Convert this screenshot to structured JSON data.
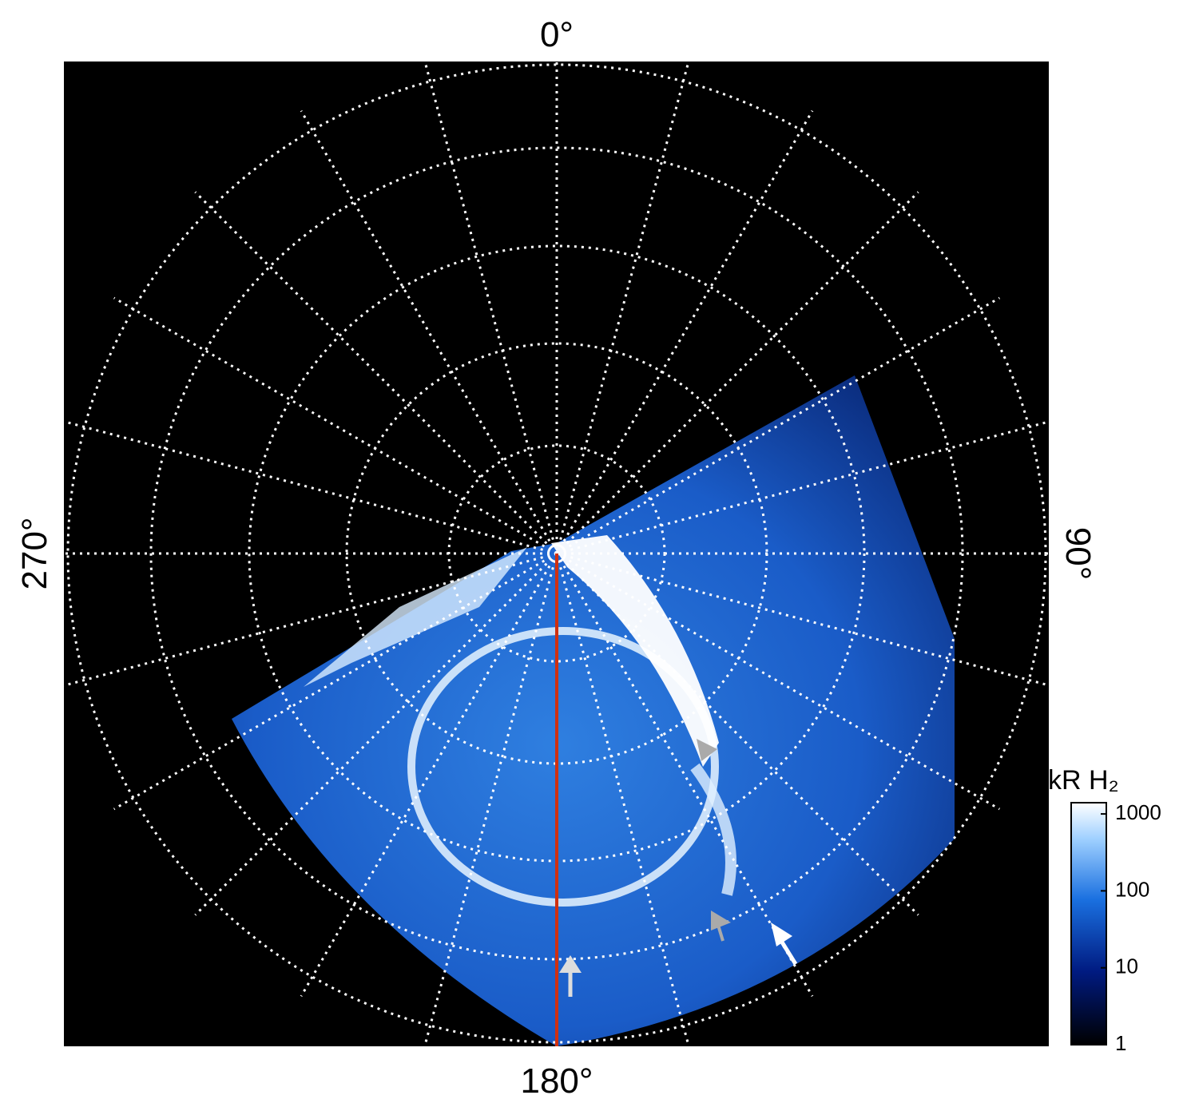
{
  "labels": {
    "top": "0°",
    "right": "90°",
    "bottom": "180°",
    "left": "270°"
  },
  "colorbar": {
    "label": "kR H₂",
    "log": true,
    "lim": [
      1,
      1400
    ],
    "ticks": [
      1,
      10,
      100,
      1000
    ]
  }
}
